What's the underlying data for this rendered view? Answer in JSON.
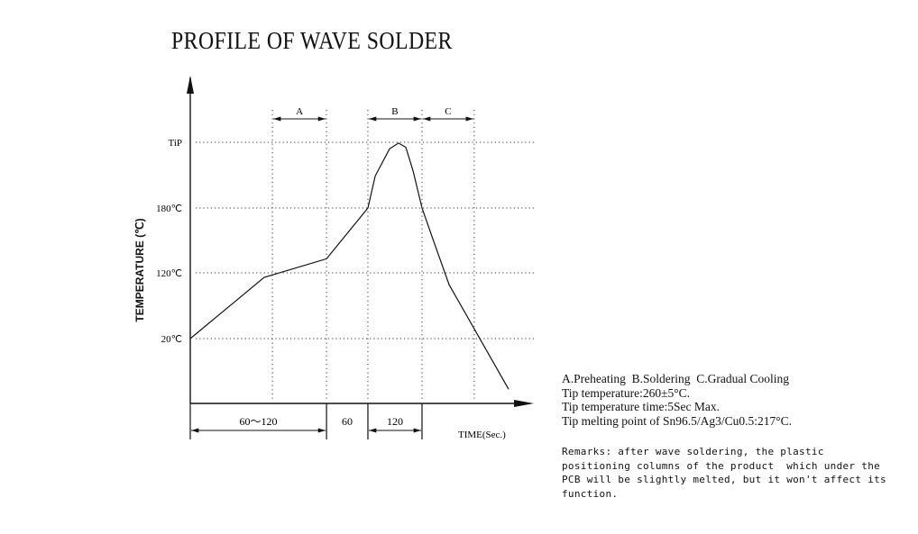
{
  "title": "PROFILE OF WAVE SOLDER",
  "chart_data": {
    "type": "line",
    "title": "PROFILE OF WAVE SOLDER",
    "ylabel": "TEMPERATURE (℃)",
    "xlabel": "TIME(Sec.)",
    "y_ticks": [
      {
        "label": "TiP",
        "value": 260
      },
      {
        "label": "180℃",
        "value": 180
      },
      {
        "label": "120℃",
        "value": 120
      },
      {
        "label": "20℃",
        "value": 20
      }
    ],
    "x_range": [
      0,
      100
    ],
    "x_units_note": "schematic",
    "vertical_guides": [
      25.8,
      42.8,
      55.8,
      72.8,
      89.2
    ],
    "series": [
      {
        "name": "profile",
        "points": [
          [
            0,
            20
          ],
          [
            23.2,
            113
          ],
          [
            42.8,
            133
          ],
          [
            55.8,
            180
          ],
          [
            58.1,
            219
          ],
          [
            62.6,
            252
          ],
          [
            65.4,
            259
          ],
          [
            67.7,
            254
          ],
          [
            70,
            225
          ],
          [
            72.8,
            180
          ],
          [
            76.5,
            149
          ],
          [
            81.3,
            102
          ],
          [
            100,
            -57
          ]
        ]
      }
    ],
    "zones": [
      {
        "label": "A",
        "from": 25.8,
        "to": 42.8
      },
      {
        "label": "B",
        "from": 55.8,
        "to": 72.8
      },
      {
        "label": "C",
        "from": 72.8,
        "to": 89.2
      }
    ],
    "durations": [
      {
        "label": "60～120",
        "from": 0,
        "to": 42.8
      },
      {
        "label": "60",
        "from": 42.8,
        "to": 55.8
      },
      {
        "label": "120",
        "from": 55.8,
        "to": 72.8
      }
    ]
  },
  "notes": [
    "A.Preheating  B.Soldering  C.Gradual Cooling",
    "Tip temperature:260±5°C.",
    "Tip temperature time:5Sec Max.",
    "Tip melting point of Sn96.5/Ag3/Cu0.5:217°C."
  ],
  "remarks": [
    "Remarks: after wave soldering, the plastic",
    "positioning columns of the product  which under the",
    "PCB will be slightly melted, but it won't affect its",
    "function."
  ]
}
